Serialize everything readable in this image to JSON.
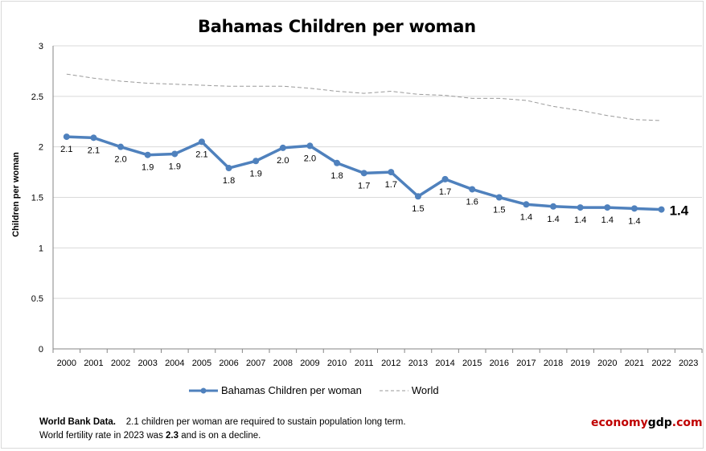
{
  "chart_data": {
    "type": "line",
    "title": "Bahamas Children per woman",
    "ylabel": "Children per woman",
    "xlabel": "",
    "categories": [
      "2000",
      "2001",
      "2002",
      "2003",
      "2004",
      "2005",
      "2006",
      "2007",
      "2008",
      "2009",
      "2010",
      "2011",
      "2012",
      "2013",
      "2014",
      "2015",
      "2016",
      "2017",
      "2018",
      "2019",
      "2020",
      "2021",
      "2022",
      "2023"
    ],
    "ylim": [
      0,
      3
    ],
    "yticks": [
      "0",
      "0.5",
      "1",
      "1.5",
      "2",
      "2.5",
      "3"
    ],
    "grid": true,
    "legend_position": "bottom",
    "series": [
      {
        "name": "Bahamas Children per woman",
        "color": "#4f81bd",
        "style": "solid-markers",
        "values": [
          2.1,
          2.09,
          2.0,
          1.92,
          1.93,
          2.05,
          1.79,
          1.86,
          1.99,
          2.01,
          1.84,
          1.74,
          1.75,
          1.51,
          1.68,
          1.58,
          1.5,
          1.43,
          1.41,
          1.4,
          1.4,
          1.39,
          1.38,
          null
        ],
        "data_labels": [
          "2.1",
          "2.1",
          "2.0",
          "1.9",
          "1.9",
          "2.1",
          "1.8",
          "1.9",
          "2.0",
          "2.0",
          "1.8",
          "1.7",
          "1.7",
          "1.5",
          "1.7",
          "1.6",
          "1.5",
          "1.4",
          "1.4",
          "1.4",
          "1.4",
          "1.4",
          "1.4",
          null
        ]
      },
      {
        "name": "World",
        "color": "#9a9a9a",
        "style": "dashed",
        "values": [
          2.72,
          2.68,
          2.65,
          2.63,
          2.62,
          2.61,
          2.6,
          2.6,
          2.6,
          2.58,
          2.55,
          2.53,
          2.55,
          2.52,
          2.51,
          2.48,
          2.48,
          2.46,
          2.4,
          2.36,
          2.31,
          2.27,
          2.26,
          null
        ]
      }
    ]
  },
  "footnote": {
    "source_label": "World Bank Data.",
    "line1_text": "2.1 children per woman  are required to sustain population long term.",
    "line2_prefix": "World fertility rate in 2023 was ",
    "line2_value": "2.3",
    "line2_suffix": " and is on a decline."
  },
  "brand": {
    "part1": "economy",
    "part2": "gdp",
    "part3": ".com"
  },
  "colors": {
    "bahamas": "#4f81bd",
    "world": "#9a9a9a",
    "grid": "#d9d9d9",
    "brand_red": "#c00000"
  }
}
